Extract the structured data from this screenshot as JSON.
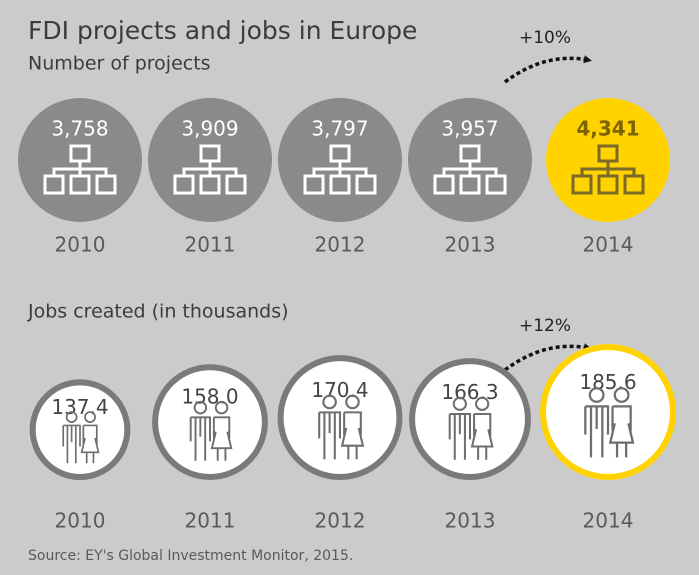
{
  "chart_data": [
    {
      "type": "pictogram",
      "title": "FDI projects and jobs in Europe",
      "subtitle": "Number of projects",
      "categories": [
        "2010",
        "2011",
        "2012",
        "2013",
        "2014"
      ],
      "values": [
        3758,
        3909,
        3797,
        3957,
        4341
      ],
      "value_labels": [
        "3,758",
        "3,909",
        "3,797",
        "3,957",
        "4,341"
      ],
      "colors": [
        "#8a8a8a",
        "#8a8a8a",
        "#8a8a8a",
        "#8a8a8a",
        "#ffd200"
      ],
      "annotation": "+10%"
    },
    {
      "type": "bubble",
      "subtitle": "Jobs created (in thousands)",
      "categories": [
        "2010",
        "2011",
        "2012",
        "2013",
        "2014"
      ],
      "values": [
        137.4,
        158.0,
        170.4,
        166.3,
        185.6
      ],
      "value_labels": [
        "137.4",
        "158.0",
        "170.4",
        "166.3",
        "185.6"
      ],
      "colors": [
        "#7a7a7a",
        "#7a7a7a",
        "#7a7a7a",
        "#7a7a7a",
        "#ffd200"
      ],
      "annotation": "+12%"
    }
  ],
  "source": "Source: EY's Global Investment Monitor, 2015."
}
